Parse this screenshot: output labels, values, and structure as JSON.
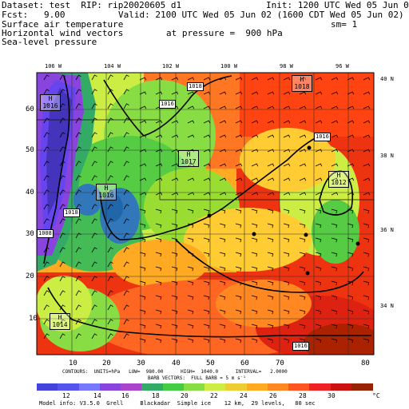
{
  "header": {
    "dataset_line": "Dataset: test  RIP: rip20020605 d1",
    "init_line": "Init: 1200 UTC Wed 05 Jun 02",
    "fcst_line": "Fcst:   9.00",
    "valid_line": "Valid: 2100 UTC Wed 05 Jun 02 (1600 CDT Wed 05 Jun 02)",
    "field1": "Surface air temperature",
    "field2": "Horizontal wind vectors",
    "field3": "Sea-level pressure",
    "sm": "sm= 1",
    "pressure": "at pressure =  900 hPa"
  },
  "map": {
    "lon_labels": [
      "106 W",
      "104 W",
      "102 W",
      "100 W",
      "98 W",
      "96 W"
    ],
    "lat_labels": [
      "40 N",
      "38 N",
      "36 N",
      "34 N"
    ],
    "grid_y_labels": [
      "60",
      "50",
      "40",
      "30",
      "20",
      "10"
    ],
    "grid_x_labels": [
      "10",
      "20",
      "30",
      "40",
      "50",
      "60",
      "70",
      "80"
    ],
    "pressure_centers": [
      {
        "type": "H",
        "value": "1016"
      },
      {
        "type": "H",
        "value": "1017"
      },
      {
        "type": "H",
        "value": "1016"
      },
      {
        "type": "H",
        "value": "1018"
      },
      {
        "type": "H",
        "value": "1012"
      },
      {
        "type": "H",
        "value": "1014"
      }
    ],
    "contour_labels": [
      "1018",
      "1016",
      "1016",
      "1018",
      "1016",
      "1012"
    ],
    "edge_label": "1008"
  },
  "footer": {
    "contours_line": "CONTOURS:  UNITS=hPa   LOW=  980.00      HIGH=  1040.0      INTERVAL=   2.0000",
    "barbs_line": "BARB VECTORS:  FULL BARB = 5 m s⁻¹",
    "colorbar_labels": [
      "12",
      "14",
      "16",
      "18",
      "20",
      "22",
      "24",
      "26",
      "28",
      "30"
    ],
    "colorbar_unit": "°C",
    "colorbar_colors": [
      "#4444dd",
      "#5555ee",
      "#7777ff",
      "#8844dd",
      "#aa44cc",
      "#33aa66",
      "#44cc44",
      "#88dd44",
      "#ccee44",
      "#eecc33",
      "#ffaa22",
      "#ff8822",
      "#ff5522",
      "#ee2222",
      "#cc1111",
      "#992200"
    ],
    "model_info": "Model info: V3.5.0  Grell     Blackadar  Simple ice    12 km,  29 levels,   80 sec"
  }
}
